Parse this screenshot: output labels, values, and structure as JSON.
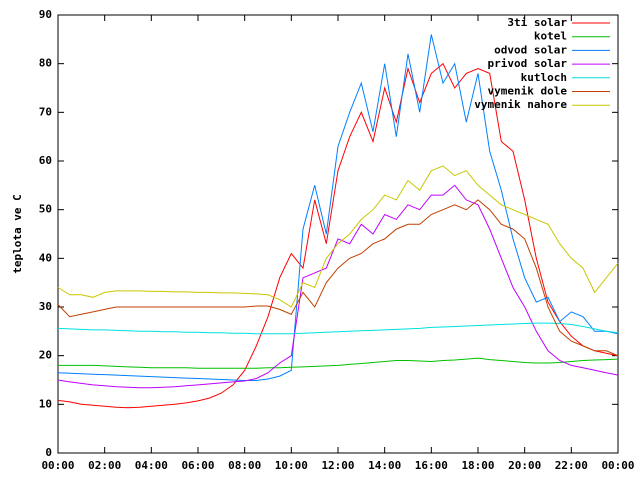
{
  "chart_data": {
    "type": "line",
    "y_label": "teplota ve C",
    "legend": "top-right",
    "x": [
      0,
      0.5,
      1,
      1.5,
      2,
      2.5,
      3,
      3.5,
      4,
      4.5,
      5,
      5.5,
      6,
      6.5,
      7,
      7.5,
      8,
      8.5,
      9,
      9.5,
      10,
      10.5,
      11,
      11.5,
      12,
      12.5,
      13,
      13.5,
      14,
      14.5,
      15,
      15.5,
      16,
      16.5,
      17,
      17.5,
      18,
      18.5,
      19,
      19.5,
      20,
      20.5,
      21,
      21.5,
      22,
      22.5,
      23,
      23.5,
      24
    ],
    "xlim": [
      0,
      24
    ],
    "xticks": [
      {
        "value": 0,
        "label": "00:00"
      },
      {
        "value": 2,
        "label": "02:00"
      },
      {
        "value": 4,
        "label": "04:00"
      },
      {
        "value": 6,
        "label": "06:00"
      },
      {
        "value": 8,
        "label": "08:00"
      },
      {
        "value": 10,
        "label": "10:00"
      },
      {
        "value": 12,
        "label": "12:00"
      },
      {
        "value": 14,
        "label": "14:00"
      },
      {
        "value": 16,
        "label": "16:00"
      },
      {
        "value": 18,
        "label": "18:00"
      },
      {
        "value": 20,
        "label": "20:00"
      },
      {
        "value": 22,
        "label": "22:00"
      },
      {
        "value": 24,
        "label": "00:00"
      }
    ],
    "ylim": [
      0,
      90
    ],
    "yticks": [
      0,
      10,
      20,
      30,
      40,
      50,
      60,
      70,
      80,
      90
    ],
    "series": [
      {
        "name": "3ti solar",
        "color": "#ff0000",
        "values": [
          10.8,
          10.5,
          10,
          9.8,
          9.6,
          9.4,
          9.3,
          9.4,
          9.6,
          9.8,
          10,
          10.3,
          10.7,
          11.3,
          12.3,
          14,
          17,
          22,
          28,
          36,
          41,
          38,
          52,
          43,
          58,
          65,
          70,
          64,
          75,
          68,
          79,
          72,
          78,
          80,
          75,
          78,
          79,
          78,
          64,
          62,
          52,
          40,
          31,
          27,
          24,
          22,
          21,
          20.5,
          20
        ]
      },
      {
        "name": "kotel",
        "color": "#00c000",
        "values": [
          18,
          18,
          18,
          18,
          17.9,
          17.8,
          17.7,
          17.6,
          17.5,
          17.5,
          17.5,
          17.5,
          17.4,
          17.4,
          17.4,
          17.4,
          17.4,
          17.4,
          17.5,
          17.5,
          17.6,
          17.7,
          17.8,
          17.9,
          18,
          18.2,
          18.4,
          18.6,
          18.8,
          19,
          19,
          18.9,
          18.8,
          19,
          19.1,
          19.3,
          19.5,
          19.2,
          19,
          18.8,
          18.6,
          18.5,
          18.5,
          18.6,
          18.8,
          19,
          19.1,
          19.2,
          19.3
        ]
      },
      {
        "name": "odvod solar",
        "color": "#0080ff",
        "values": [
          16.5,
          16.4,
          16.3,
          16.2,
          16.1,
          16,
          15.9,
          15.8,
          15.7,
          15.6,
          15.5,
          15.4,
          15.3,
          15.2,
          15.1,
          15,
          14.9,
          14.9,
          15.2,
          15.8,
          17,
          46,
          55,
          45,
          63,
          70,
          76,
          66,
          80,
          65,
          82,
          70,
          86,
          76,
          80,
          68,
          78,
          62,
          54,
          44,
          36,
          31,
          32,
          27,
          29,
          28,
          25,
          25,
          24.5
        ]
      },
      {
        "name": "privod solar",
        "color": "#c000ff",
        "values": [
          15,
          14.6,
          14.3,
          14,
          13.8,
          13.6,
          13.5,
          13.4,
          13.4,
          13.5,
          13.6,
          13.8,
          14,
          14.2,
          14.4,
          14.6,
          14.8,
          15.3,
          16.5,
          18.5,
          20,
          36,
          37,
          38,
          44,
          43,
          47,
          45,
          49,
          48,
          51,
          50,
          53,
          53,
          55,
          52,
          51,
          46,
          40,
          34,
          30,
          25,
          21,
          19,
          18,
          17.5,
          17,
          16.5,
          16
        ]
      },
      {
        "name": "kutloch",
        "color": "#00e0e0",
        "values": [
          25.6,
          25.5,
          25.4,
          25.3,
          25.3,
          25.2,
          25.1,
          25,
          25,
          24.9,
          24.9,
          24.8,
          24.8,
          24.7,
          24.7,
          24.6,
          24.6,
          24.5,
          24.5,
          24.5,
          24.5,
          24.6,
          24.7,
          24.8,
          24.9,
          25,
          25.1,
          25.2,
          25.3,
          25.4,
          25.5,
          25.6,
          25.8,
          25.9,
          26,
          26.1,
          26.2,
          26.3,
          26.4,
          26.5,
          26.6,
          26.7,
          26.7,
          26.6,
          26.4,
          26,
          25.5,
          25,
          24.7
        ]
      },
      {
        "name": "vymenik dole",
        "color": "#c04000",
        "values": [
          30.5,
          28,
          28.5,
          29,
          29.5,
          30,
          30,
          30,
          30,
          30,
          30,
          30,
          30,
          30,
          30,
          30,
          30,
          30.2,
          30.2,
          29.5,
          28.5,
          33,
          30,
          35,
          38,
          40,
          41,
          43,
          44,
          46,
          47,
          47,
          49,
          50,
          51,
          50,
          52,
          50,
          47,
          46,
          44,
          38,
          30,
          25,
          23,
          22,
          21,
          21,
          20
        ]
      },
      {
        "name": "vymenik nahore",
        "color": "#c8c800",
        "values": [
          34,
          32.5,
          32.5,
          32,
          33,
          33.3,
          33.3,
          33.3,
          33.2,
          33.2,
          33.1,
          33.1,
          33,
          33,
          32.9,
          32.9,
          32.8,
          32.7,
          32.5,
          31.5,
          30,
          35,
          34,
          40,
          43,
          45,
          48,
          50,
          53,
          52,
          56,
          54,
          58,
          59,
          57,
          58,
          55,
          53,
          51,
          50,
          49,
          48,
          47,
          43,
          40,
          38,
          33,
          36,
          39
        ]
      }
    ]
  }
}
